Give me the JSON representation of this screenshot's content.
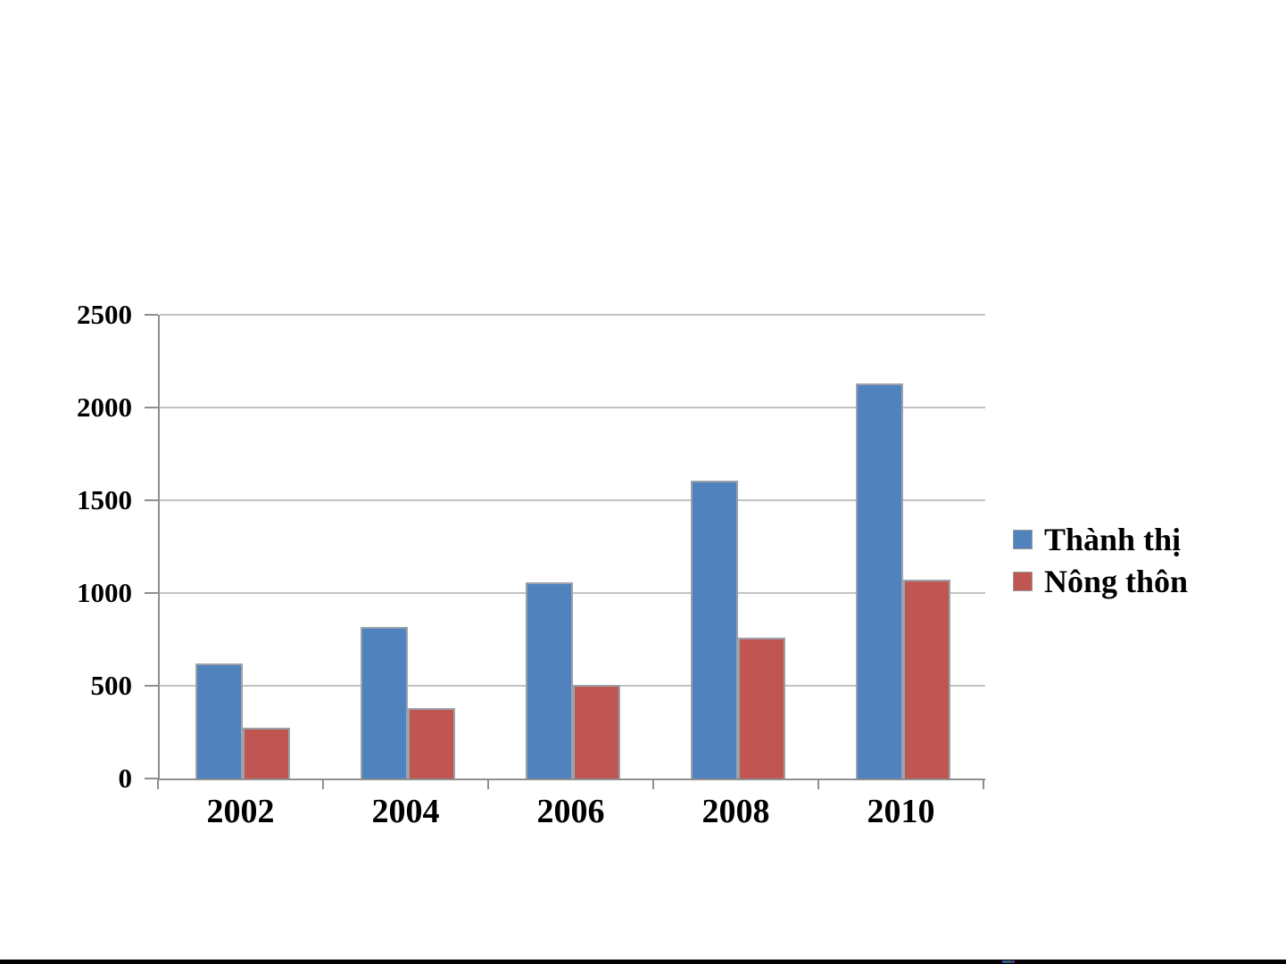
{
  "slide": {
    "background_color": "#ffffff",
    "bottom_rule_color": "#000000"
  },
  "chart_data": {
    "type": "bar",
    "title": "",
    "xlabel": "",
    "ylabel": "",
    "categories": [
      "2002",
      "2004",
      "2006",
      "2008",
      "2010"
    ],
    "series": [
      {
        "name": "Thành thị",
        "slug": "thanh-thi",
        "color": "#5082BE",
        "values": [
          622,
          815,
          1058,
          1605,
          2130
        ]
      },
      {
        "name": "Nông thôn",
        "slug": "nong-thon",
        "color": "#C05652",
        "values": [
          275,
          378,
          506,
          762,
          1070
        ]
      }
    ],
    "ylim": [
      0,
      2500
    ],
    "yticks": [
      0,
      500,
      1000,
      1500,
      2000,
      2500
    ],
    "grid": true,
    "gridline_color": "#c2c2c2",
    "axis_color": "#8f8f8f",
    "bar_outline_color": "#9ba2ab",
    "legend_position": "right"
  }
}
